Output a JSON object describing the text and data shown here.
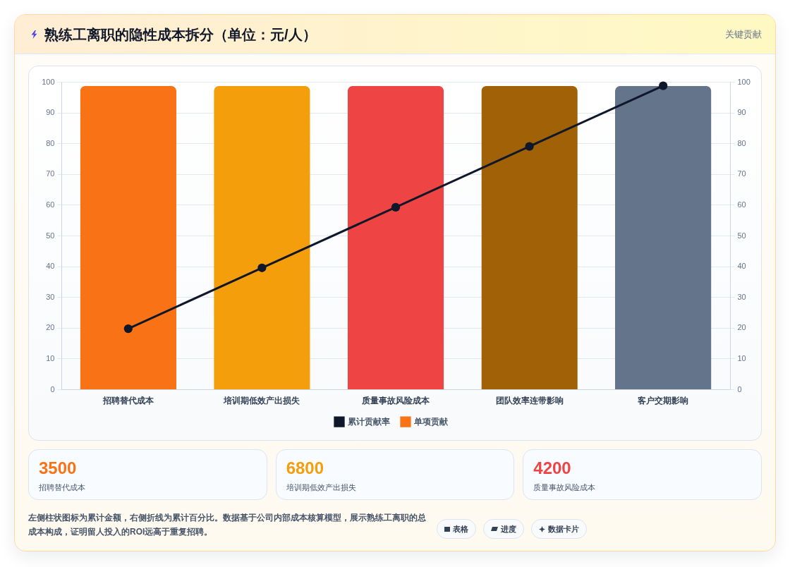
{
  "chart_data": [
    {
      "type": "bar",
      "title": "熟练工离职的隐性成本拆分（单位：元/人）",
      "categories": [
        "招聘替代成本",
        "培训期低效产出损失",
        "质量事故风险成本",
        "团队效率连带影响",
        "客户交期影响"
      ],
      "series": [
        {
          "name": "累计贡献率",
          "type": "line",
          "axis": "y2",
          "color": "#0f172a",
          "values": [
            19.7,
            39.5,
            59.2,
            79,
            98.7
          ]
        },
        {
          "name": "单项贡献",
          "type": "bar",
          "color": "#f97316",
          "colors": [
            "#f97316",
            "#f59e0b",
            "#ef4444",
            "#a16207",
            "#64748b"
          ],
          "values": [
            98.7,
            98.7,
            98.7,
            98.7,
            98.7
          ]
        }
      ],
      "ylim": [
        0,
        100
      ],
      "yticks": [
        0,
        10,
        20,
        30,
        40,
        50,
        60,
        70,
        80,
        90,
        100
      ],
      "y2lim": [
        0,
        100
      ],
      "y2ticks": [
        0,
        10,
        20,
        30,
        40,
        50,
        60,
        70,
        80,
        90,
        100
      ],
      "grid": "y",
      "legend": "bottom",
      "marker": "circle",
      "annotations": [
        "关键贡献",
        "左侧柱状图标为累计金额，右侧折线为累计百分比。数据基于公司内部成本核算模型，展示熟练工离职的总成本构成，证明留人投入的ROI远高于重复招聘。",
        "表格",
        "进度",
        "数据卡片"
      ]
    },
    {
      "type": "other",
      "categories": [
        "招聘替代成本",
        "培训期低效产出损失",
        "质量事故风险成本"
      ],
      "values": [
        3500,
        6800,
        4200
      ],
      "data_labels": true
    }
  ]
}
